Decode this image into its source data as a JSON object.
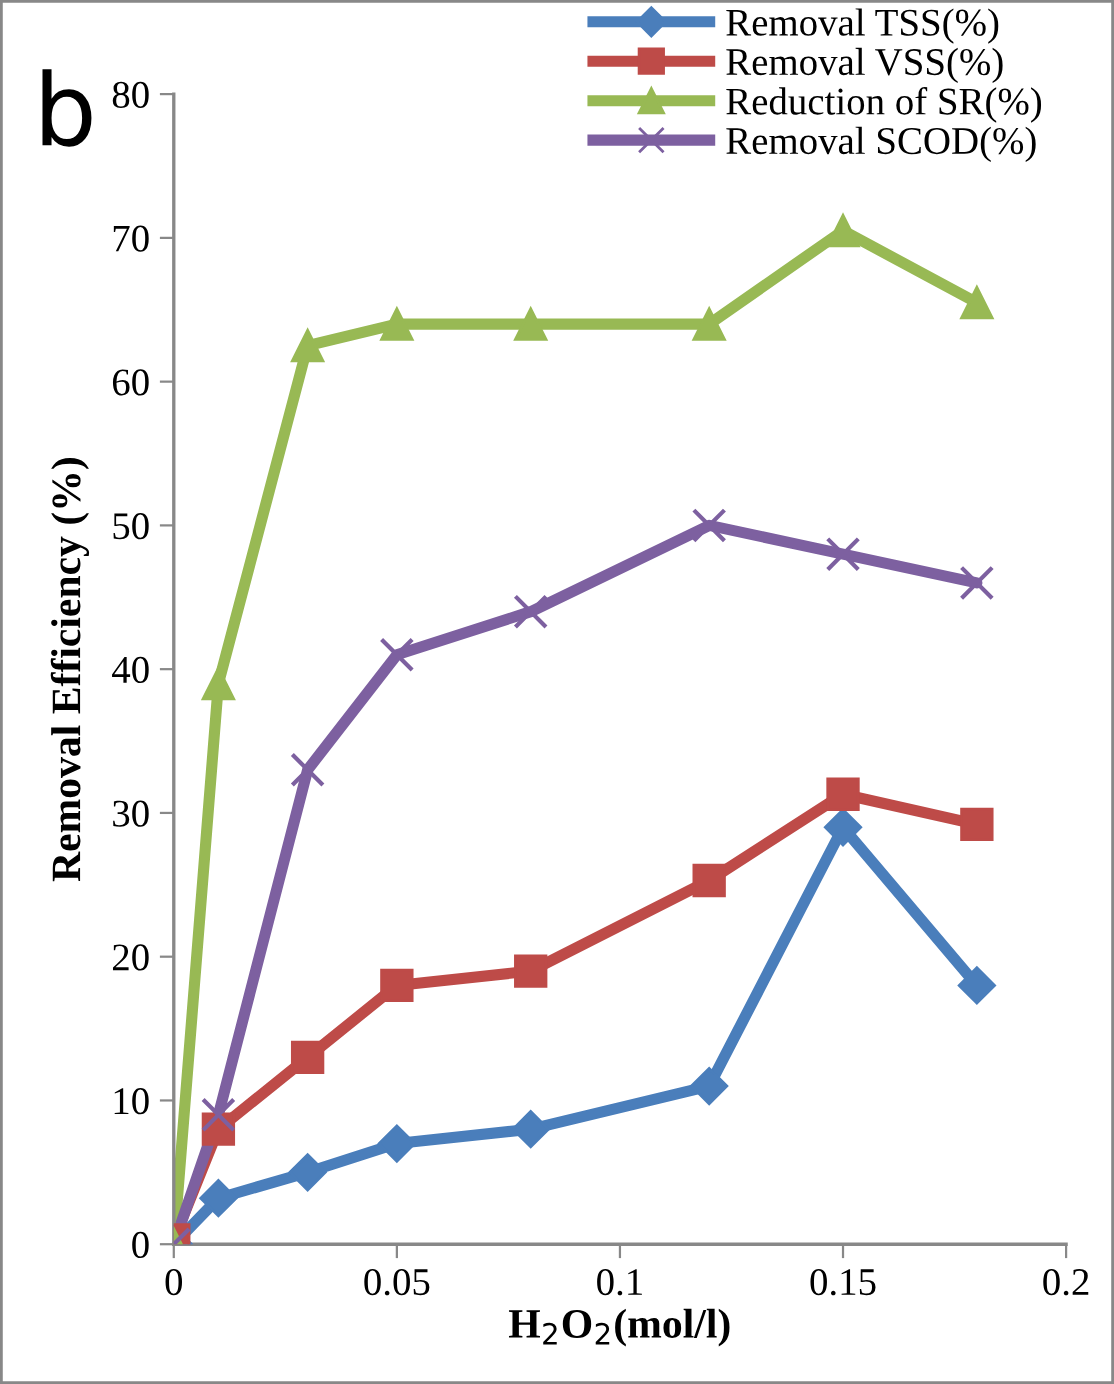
{
  "chart_data": {
    "type": "line",
    "xlabel": "H$_{2}$O$_{2}$(mol/l)",
    "ylabel": "Removal Efficiency (%)",
    "annotations": [
      "b"
    ],
    "x": [
      0,
      0.01,
      0.03,
      0.05,
      0.08,
      0.12,
      0.15,
      0.18
    ],
    "series": [
      {
        "name": "Removal TSS(%)",
        "color": "#4a7ebb",
        "marker": "diamond",
        "values": [
          0,
          3.2,
          5,
          7,
          8,
          11,
          29,
          18
        ]
      },
      {
        "name": "Removal VSS(%)",
        "color": "#be4b48",
        "marker": "square",
        "values": [
          0.3,
          8,
          13,
          18,
          19,
          25.3,
          31.3,
          29.2
        ]
      },
      {
        "name": "Reduction of SR(%)",
        "color": "#98b954",
        "marker": "triangle",
        "values": [
          0,
          39,
          62.5,
          64,
          64,
          64,
          70.5,
          65.5
        ]
      },
      {
        "name": "Removal SCOD(%)",
        "color": "#7d60a0",
        "marker": "cross",
        "values": [
          0,
          9,
          33,
          41,
          44,
          50,
          48,
          46
        ]
      }
    ],
    "xlim": [
      0,
      0.2
    ],
    "xticks": [
      0,
      0.05,
      0.1,
      0.15,
      0.2
    ],
    "ylim": [
      0,
      80
    ],
    "yticks": [
      0,
      10,
      20,
      30,
      40,
      50,
      60,
      70,
      80
    ],
    "grid": false,
    "legend": "top right",
    "line_style": "solid"
  }
}
